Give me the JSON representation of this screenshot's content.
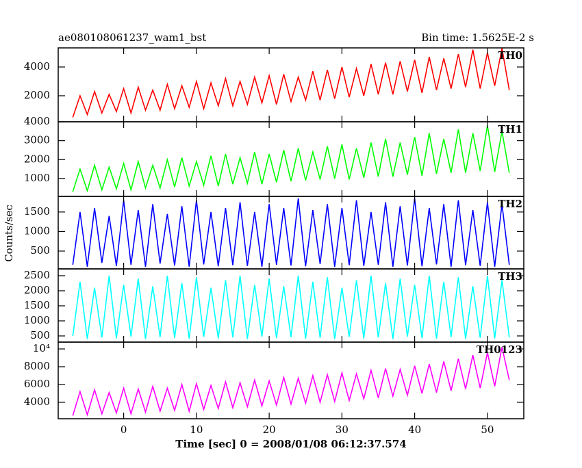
{
  "chart_data": [
    {
      "type": "line",
      "title": "ae080108061237_wam1_bst",
      "subtitle": "Bin time: 1.5625E-2 s",
      "x": [
        -7,
        -6,
        -5,
        -4,
        -3,
        -2,
        -1,
        0,
        1,
        2,
        3,
        4,
        5,
        6,
        7,
        8,
        9,
        10,
        11,
        12,
        13,
        14,
        15,
        16,
        17,
        18,
        19,
        20,
        21,
        22,
        23,
        24,
        25,
        26,
        27,
        28,
        29,
        30,
        31,
        32,
        33,
        34,
        35,
        36,
        37,
        38,
        39,
        40,
        41,
        42,
        43,
        44,
        45,
        46,
        47,
        48,
        49,
        50,
        51,
        52,
        53
      ],
      "xlim": [
        -9,
        55
      ],
      "xticks": [
        0,
        10,
        20,
        30,
        40,
        50
      ],
      "ylim": [
        190,
        5330
      ],
      "yticks": [
        2000,
        4000
      ],
      "series": [
        {
          "name": "TH0",
          "color": "#ff0000",
          "values": [
            500,
            2000,
            700,
            2300,
            800,
            2100,
            900,
            2500,
            800,
            2600,
            1000,
            2400,
            1000,
            2800,
            1100,
            2700,
            1200,
            3000,
            1100,
            2900,
            1300,
            3200,
            1300,
            3000,
            1400,
            3300,
            1500,
            3400,
            1400,
            3500,
            1600,
            3300,
            1700,
            3700,
            1700,
            3800,
            1800,
            4000,
            1900,
            3900,
            2000,
            4200,
            2100,
            4300,
            2100,
            4400,
            2300,
            4500,
            2200,
            4700,
            2400,
            4600,
            2500,
            4900,
            2600,
            5200,
            2500,
            5000,
            2700,
            5300,
            2400
          ]
        }
      ]
    },
    {
      "type": "line",
      "x": [
        -7,
        -6,
        -5,
        -4,
        -3,
        -2,
        -1,
        0,
        1,
        2,
        3,
        4,
        5,
        6,
        7,
        8,
        9,
        10,
        11,
        12,
        13,
        14,
        15,
        16,
        17,
        18,
        19,
        20,
        21,
        22,
        23,
        24,
        25,
        26,
        27,
        28,
        29,
        30,
        31,
        32,
        33,
        34,
        35,
        36,
        37,
        38,
        39,
        40,
        41,
        42,
        43,
        44,
        45,
        46,
        47,
        48,
        49,
        50,
        51,
        52,
        53
      ],
      "xlim": [
        -9,
        55
      ],
      "xticks": [
        0,
        10,
        20,
        30,
        40,
        50
      ],
      "ylim": [
        55,
        4000
      ],
      "yticks": [
        1000,
        2000,
        3000,
        4000
      ],
      "series": [
        {
          "name": "TH1",
          "color": "#00ff00",
          "values": [
            300,
            1500,
            350,
            1700,
            400,
            1600,
            450,
            1800,
            400,
            1900,
            500,
            1700,
            500,
            2000,
            550,
            2100,
            600,
            1900,
            650,
            2200,
            600,
            2300,
            700,
            2100,
            750,
            2400,
            700,
            2300,
            800,
            2500,
            850,
            2600,
            900,
            2400,
            950,
            2700,
            1000,
            2800,
            950,
            2600,
            1050,
            2900,
            1100,
            3100,
            1100,
            2900,
            1200,
            3200,
            1150,
            3400,
            1250,
            3100,
            1300,
            3600,
            1300,
            3400,
            1400,
            3800,
            1350,
            3500,
            1300
          ]
        }
      ]
    },
    {
      "type": "line",
      "ylabel": "Counts/sec",
      "x": [
        -7,
        -6,
        -5,
        -4,
        -3,
        -2,
        -1,
        0,
        1,
        2,
        3,
        4,
        5,
        6,
        7,
        8,
        9,
        10,
        11,
        12,
        13,
        14,
        15,
        16,
        17,
        18,
        19,
        20,
        21,
        22,
        23,
        24,
        25,
        26,
        27,
        28,
        29,
        30,
        31,
        32,
        33,
        34,
        35,
        36,
        37,
        38,
        39,
        40,
        41,
        42,
        43,
        44,
        45,
        46,
        47,
        48,
        49,
        50,
        51,
        52,
        53
      ],
      "xlim": [
        -9,
        55
      ],
      "xticks": [
        0,
        10,
        20,
        30,
        40,
        50
      ],
      "ylim": [
        44,
        1900
      ],
      "yticks": [
        500,
        1000,
        1500
      ],
      "series": [
        {
          "name": "TH2",
          "color": "#0000ff",
          "values": [
            150,
            1500,
            100,
            1600,
            200,
            1400,
            120,
            1800,
            150,
            1550,
            100,
            1700,
            180,
            1450,
            130,
            1650,
            100,
            1800,
            160,
            1500,
            110,
            1600,
            140,
            1750,
            120,
            1500,
            100,
            1700,
            150,
            1600,
            130,
            1850,
            110,
            1550,
            170,
            1700,
            100,
            1600,
            140,
            1800,
            120,
            1500,
            150,
            1750,
            100,
            1650,
            130,
            1850,
            110,
            1600,
            160,
            1700,
            100,
            1800,
            140,
            1550,
            120,
            1750,
            100,
            1700,
            150
          ]
        }
      ]
    },
    {
      "type": "line",
      "x": [
        -7,
        -6,
        -5,
        -4,
        -3,
        -2,
        -1,
        0,
        1,
        2,
        3,
        4,
        5,
        6,
        7,
        8,
        9,
        10,
        11,
        12,
        13,
        14,
        15,
        16,
        17,
        18,
        19,
        20,
        21,
        22,
        23,
        24,
        25,
        26,
        27,
        28,
        29,
        30,
        31,
        32,
        33,
        34,
        35,
        36,
        37,
        38,
        39,
        40,
        41,
        42,
        43,
        44,
        45,
        46,
        47,
        48,
        49,
        50,
        51,
        52,
        53
      ],
      "xlim": [
        -9,
        55
      ],
      "xticks": [
        0,
        10,
        20,
        30,
        40,
        50
      ],
      "ylim": [
        295,
        2727
      ],
      "yticks": [
        500,
        1000,
        1500,
        2000,
        2500
      ],
      "series": [
        {
          "name": "TH3",
          "color": "#00ffff",
          "values": [
            500,
            2300,
            400,
            2100,
            450,
            2500,
            420,
            2200,
            480,
            2400,
            400,
            2150,
            460,
            2500,
            430,
            2250,
            410,
            2450,
            470,
            2100,
            420,
            2350,
            450,
            2500,
            400,
            2200,
            480,
            2400,
            430,
            2150,
            460,
            2500,
            410,
            2300,
            440,
            2450,
            400,
            2100,
            470,
            2350,
            420,
            2500,
            450,
            2250,
            400,
            2400,
            480,
            2200,
            430,
            2500,
            410,
            2300,
            460,
            2450,
            400,
            2150,
            440,
            2500,
            420,
            2350,
            450
          ]
        }
      ]
    },
    {
      "type": "line",
      "xlabel": "Time [sec] 0 = 2008/01/08 06:12:37.574",
      "x": [
        -7,
        -6,
        -5,
        -4,
        -3,
        -2,
        -1,
        0,
        1,
        2,
        3,
        4,
        5,
        6,
        7,
        8,
        9,
        10,
        11,
        12,
        13,
        14,
        15,
        16,
        17,
        18,
        19,
        20,
        21,
        22,
        23,
        24,
        25,
        26,
        27,
        28,
        29,
        30,
        31,
        32,
        33,
        34,
        35,
        36,
        37,
        38,
        39,
        40,
        41,
        42,
        43,
        44,
        45,
        46,
        47,
        48,
        49,
        50,
        51,
        52,
        53
      ],
      "xlim": [
        -9,
        55
      ],
      "xticks": [
        0,
        10,
        20,
        30,
        40,
        50
      ],
      "ylim": [
        2150,
        10770
      ],
      "yticks": [
        4000,
        6000,
        8000,
        {
          "value": 10000,
          "label": "10⁴"
        }
      ],
      "series": [
        {
          "name": "TH0123",
          "color": "#ff00ff",
          "values": [
            2500,
            5200,
            2600,
            5400,
            2700,
            5100,
            2800,
            5600,
            2700,
            5500,
            2900,
            5800,
            3000,
            5600,
            3100,
            6000,
            3000,
            6100,
            3200,
            5900,
            3300,
            6300,
            3400,
            6200,
            3500,
            6500,
            3600,
            6400,
            3700,
            6800,
            3800,
            6700,
            3900,
            7000,
            4000,
            7100,
            4100,
            7300,
            4200,
            7200,
            4400,
            7600,
            4500,
            7800,
            4700,
            7700,
            4800,
            8100,
            5000,
            8300,
            5100,
            8600,
            5300,
            8900,
            5500,
            9300,
            5600,
            9600,
            5800,
            10200,
            6500
          ]
        }
      ]
    }
  ]
}
